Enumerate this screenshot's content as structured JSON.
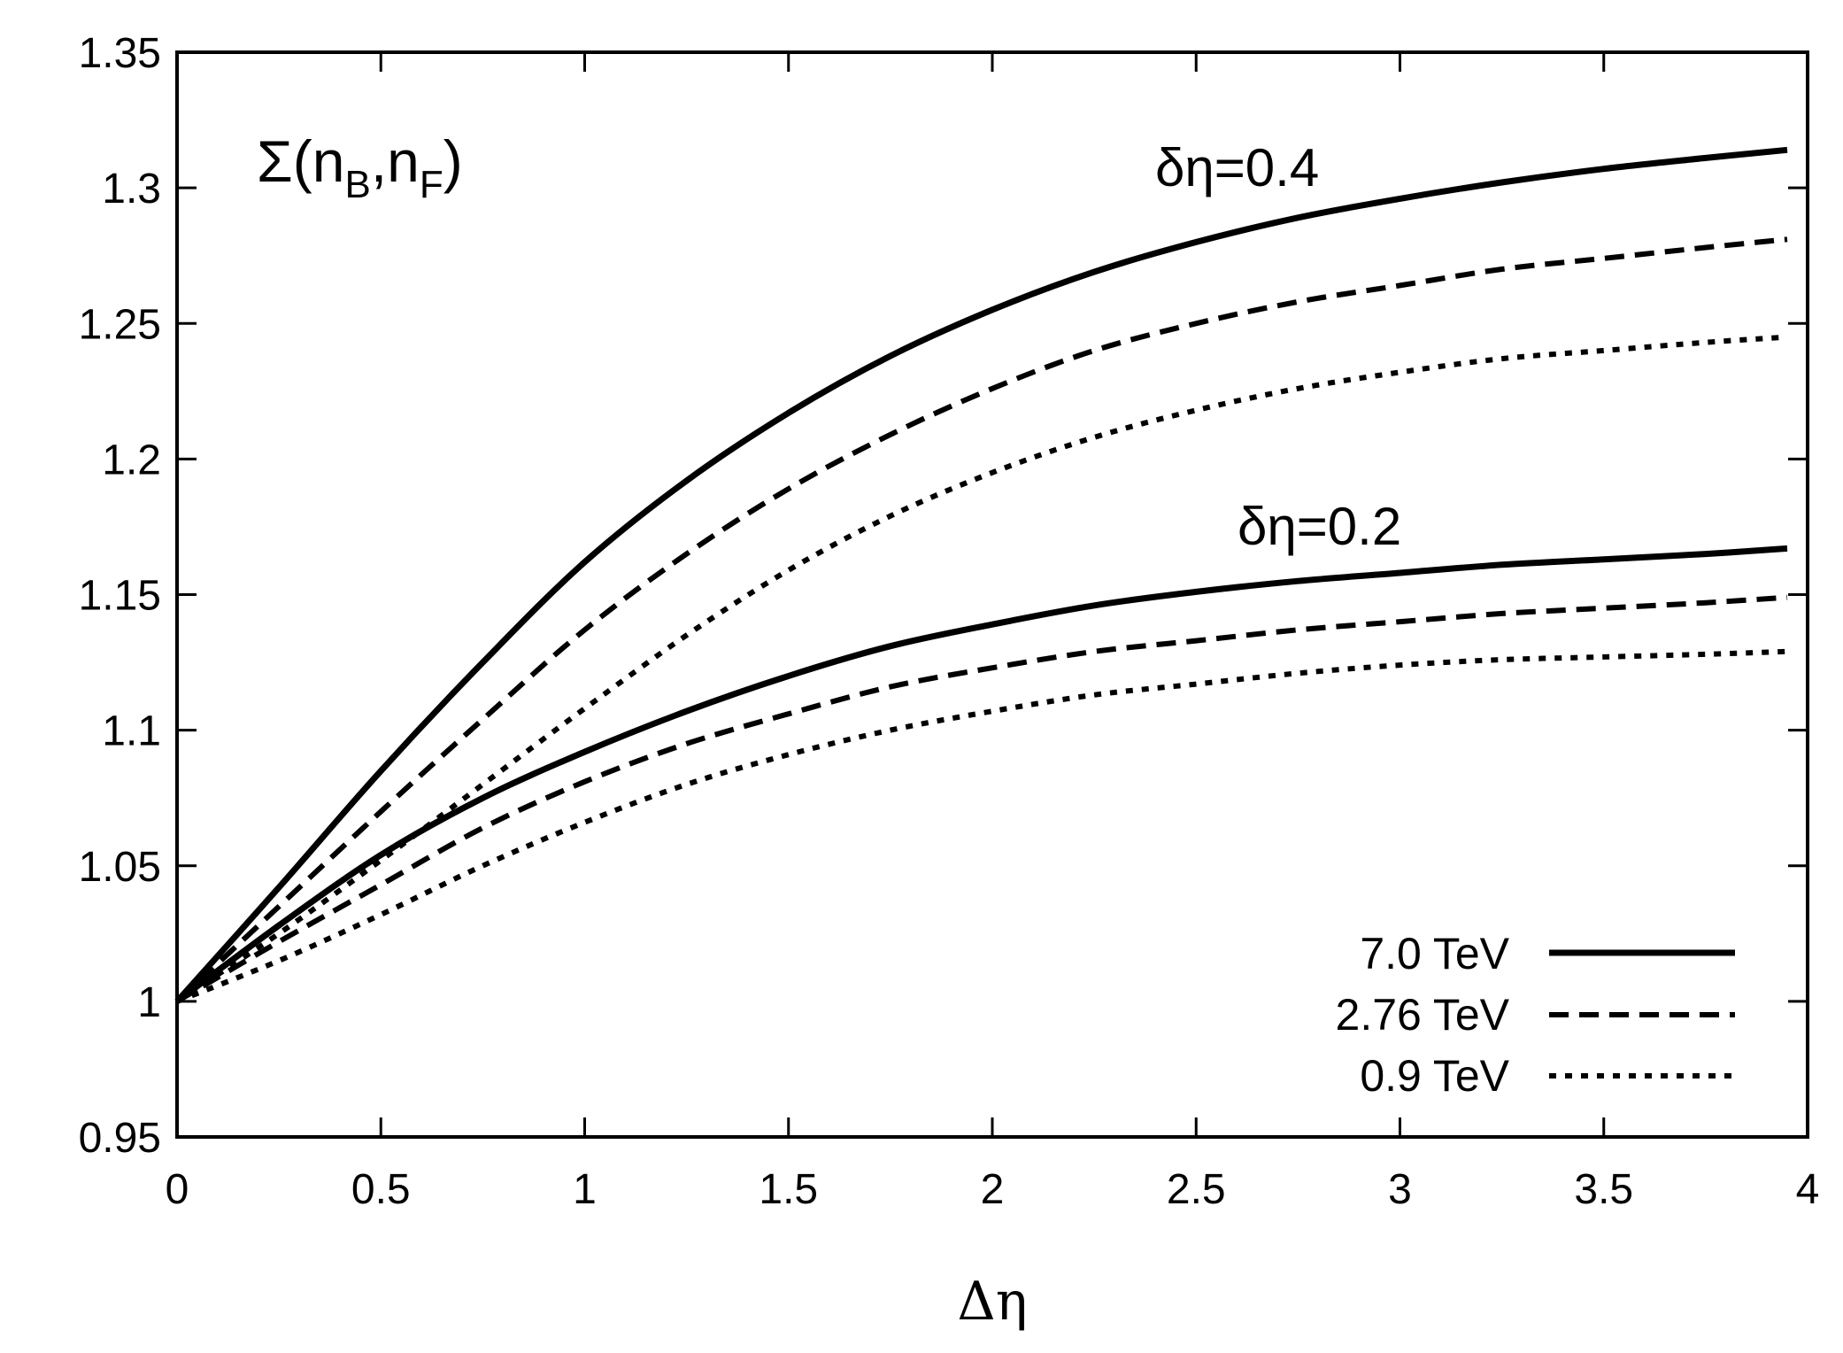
{
  "chart_data": {
    "type": "line",
    "title": "",
    "xlabel": "Δη",
    "ylabel": "",
    "xlim": [
      0,
      4
    ],
    "ylim": [
      0.95,
      1.35
    ],
    "xticks": [
      0,
      0.5,
      1,
      1.5,
      2,
      2.5,
      3,
      3.5,
      4
    ],
    "xtick_labels": [
      "0",
      "0.5",
      "1",
      "1.5",
      "2",
      "2.5",
      "3",
      "3.5",
      "4"
    ],
    "yticks": [
      0.95,
      1.0,
      1.05,
      1.1,
      1.15,
      1.2,
      1.25,
      1.3,
      1.35
    ],
    "ytick_labels": [
      "0.95",
      "1",
      "1.05",
      "1.1",
      "1.15",
      "1.2",
      "1.25",
      "1.3",
      "1.35"
    ],
    "grid": false,
    "legend_position": "bottom-right",
    "legend": [
      {
        "label": "7.0 TeV",
        "style": "solid"
      },
      {
        "label": "2.76 TeV",
        "style": "dashed"
      },
      {
        "label": "0.9 TeV",
        "style": "dotted"
      }
    ],
    "annotations": [
      {
        "text": "Σ(n",
        "sub1": "B",
        "mid": ",n",
        "sub2": "F",
        "end": ")",
        "x": 0.2,
        "y": 1.3
      },
      {
        "text": "δη=0.4",
        "x": 2.4,
        "y": 1.303
      },
      {
        "text": "δη=0.2",
        "x": 2.6,
        "y": 1.15
      }
    ],
    "x": [
      0,
      0.25,
      0.5,
      0.75,
      1.0,
      1.25,
      1.5,
      1.75,
      2.0,
      2.25,
      2.5,
      2.75,
      3.0,
      3.25,
      3.5,
      3.75,
      3.95
    ],
    "series": [
      {
        "group": "δη=0.4",
        "energy": "7.0 TeV",
        "style": "solid",
        "values": [
          1.0,
          1.042,
          1.085,
          1.125,
          1.162,
          1.192,
          1.217,
          1.238,
          1.255,
          1.269,
          1.28,
          1.289,
          1.296,
          1.302,
          1.307,
          1.311,
          1.314
        ]
      },
      {
        "group": "δη=0.4",
        "energy": "2.76 TeV",
        "style": "dashed",
        "values": [
          1.0,
          1.035,
          1.07,
          1.104,
          1.137,
          1.165,
          1.189,
          1.209,
          1.226,
          1.24,
          1.25,
          1.258,
          1.264,
          1.27,
          1.274,
          1.278,
          1.281
        ]
      },
      {
        "group": "δη=0.4",
        "energy": "0.9 TeV",
        "style": "dotted",
        "values": [
          1.0,
          1.025,
          1.052,
          1.08,
          1.108,
          1.135,
          1.159,
          1.179,
          1.195,
          1.208,
          1.218,
          1.226,
          1.232,
          1.237,
          1.24,
          1.243,
          1.245
        ]
      },
      {
        "group": "δη=0.2",
        "energy": "7.0 TeV",
        "style": "solid",
        "values": [
          1.0,
          1.028,
          1.054,
          1.075,
          1.092,
          1.107,
          1.12,
          1.131,
          1.139,
          1.146,
          1.151,
          1.155,
          1.158,
          1.161,
          1.163,
          1.165,
          1.167
        ]
      },
      {
        "group": "δη=0.2",
        "energy": "2.76 TeV",
        "style": "dashed",
        "values": [
          1.0,
          1.022,
          1.043,
          1.064,
          1.081,
          1.095,
          1.106,
          1.116,
          1.123,
          1.129,
          1.133,
          1.137,
          1.14,
          1.143,
          1.145,
          1.147,
          1.149
        ]
      },
      {
        "group": "δη=0.2",
        "energy": "0.9 TeV",
        "style": "dotted",
        "values": [
          1.0,
          1.015,
          1.032,
          1.05,
          1.066,
          1.08,
          1.091,
          1.1,
          1.107,
          1.113,
          1.117,
          1.121,
          1.124,
          1.126,
          1.127,
          1.128,
          1.129
        ]
      }
    ]
  }
}
